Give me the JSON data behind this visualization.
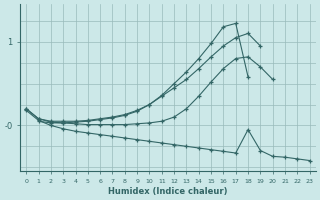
{
  "xlabel": "Humidex (Indice chaleur)",
  "bg_color": "#cce8e8",
  "line_color": "#336666",
  "grid_color": "#99bbbb",
  "xlim": [
    -0.5,
    23.5
  ],
  "ylim": [
    -0.55,
    1.45
  ],
  "ytick_vals": [
    1.0,
    0.0
  ],
  "ytick_labels": [
    "1",
    "-0"
  ],
  "xticks": [
    0,
    1,
    2,
    3,
    4,
    5,
    6,
    7,
    8,
    9,
    10,
    11,
    12,
    13,
    14,
    15,
    16,
    17,
    18,
    19,
    20,
    21,
    22,
    23
  ],
  "series": [
    {
      "x": [
        0,
        1,
        2,
        3,
        4,
        5,
        6,
        7,
        8,
        9,
        10,
        11,
        12,
        13,
        14,
        15,
        16,
        17,
        18,
        19
      ],
      "y": [
        0.2,
        0.08,
        0.05,
        0.05,
        0.05,
        0.06,
        0.08,
        0.1,
        0.13,
        0.18,
        0.25,
        0.35,
        0.45,
        0.55,
        0.68,
        0.82,
        0.95,
        1.05,
        1.1,
        0.95
      ]
    },
    {
      "x": [
        1,
        2,
        3,
        4,
        5,
        6,
        7,
        8,
        9,
        10,
        11,
        12,
        13,
        14,
        15,
        16,
        17,
        18
      ],
      "y": [
        0.05,
        0.03,
        0.03,
        0.04,
        0.05,
        0.07,
        0.09,
        0.12,
        0.17,
        0.25,
        0.36,
        0.5,
        0.64,
        0.8,
        0.98,
        1.18,
        1.22,
        0.58
      ]
    },
    {
      "x": [
        0,
        1,
        2,
        3,
        4,
        5,
        6,
        7,
        8,
        9,
        10,
        11,
        12,
        13,
        14,
        15,
        16,
        17,
        18,
        19,
        20
      ],
      "y": [
        0.2,
        0.08,
        0.04,
        0.03,
        0.02,
        0.01,
        0.01,
        0.01,
        0.01,
        0.02,
        0.03,
        0.05,
        0.1,
        0.2,
        0.35,
        0.52,
        0.68,
        0.8,
        0.82,
        0.7,
        0.55
      ]
    },
    {
      "x": [
        0,
        1,
        2,
        3,
        4,
        5,
        6,
        7,
        8,
        9,
        10,
        11,
        12,
        13,
        14,
        15,
        16,
        17,
        18,
        19,
        20,
        21,
        22,
        23
      ],
      "y": [
        0.18,
        0.06,
        0.0,
        -0.04,
        -0.07,
        -0.09,
        -0.11,
        -0.13,
        -0.15,
        -0.17,
        -0.19,
        -0.21,
        -0.23,
        -0.25,
        -0.27,
        -0.29,
        -0.31,
        -0.33,
        -0.05,
        -0.3,
        -0.37,
        -0.38,
        -0.4,
        -0.42
      ]
    }
  ]
}
